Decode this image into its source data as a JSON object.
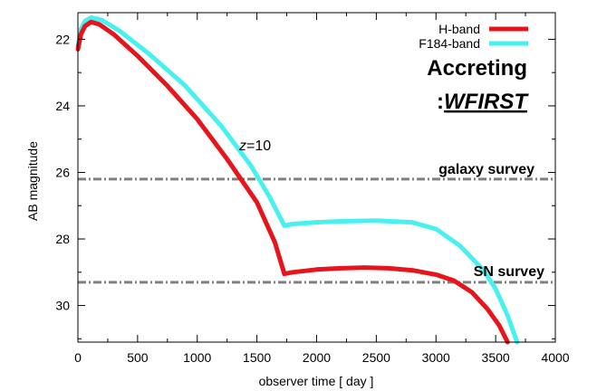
{
  "chart_data": {
    "type": "line",
    "xlabel": "observer time [ day ]",
    "ylabel": "AB magnitude",
    "xlim": [
      0,
      4000
    ],
    "ylim": [
      31.1,
      21.2
    ],
    "y_inverted": true,
    "grid": false,
    "legend_position": "top-right",
    "xticks": [
      "0",
      "500",
      "1000",
      "1500",
      "2000",
      "2500",
      "3000",
      "3500",
      "4000"
    ],
    "yticks": [
      "22",
      "24",
      "26",
      "28",
      "30"
    ],
    "annotations": {
      "accreting": "Accreting",
      "wfirst_prefix": ":",
      "wfirst": "WFIRST",
      "z_var": "z",
      "z_value": "=10"
    },
    "hlines": [
      {
        "name": "galaxy survey",
        "y": 26.2,
        "color": "#808080"
      },
      {
        "name": "SN survey",
        "y": 29.3,
        "color": "#808080"
      }
    ],
    "series": [
      {
        "name": "H-band",
        "color": "#e8141c",
        "points": [
          [
            0,
            22.3
          ],
          [
            25,
            21.85
          ],
          [
            60,
            21.6
          ],
          [
            110,
            21.48
          ],
          [
            180,
            21.55
          ],
          [
            300,
            21.85
          ],
          [
            500,
            22.5
          ],
          [
            750,
            23.4
          ],
          [
            1000,
            24.4
          ],
          [
            1250,
            25.6
          ],
          [
            1500,
            26.9
          ],
          [
            1650,
            28.1
          ],
          [
            1730,
            29.05
          ],
          [
            1800,
            29.0
          ],
          [
            2000,
            28.92
          ],
          [
            2200,
            28.88
          ],
          [
            2400,
            28.86
          ],
          [
            2600,
            28.88
          ],
          [
            2800,
            28.94
          ],
          [
            3000,
            29.07
          ],
          [
            3150,
            29.25
          ],
          [
            3300,
            29.6
          ],
          [
            3430,
            30.1
          ],
          [
            3530,
            30.6
          ],
          [
            3600,
            31.1
          ]
        ]
      },
      {
        "name": "F184-band",
        "color": "#48f0f0",
        "points": [
          [
            0,
            22.2
          ],
          [
            25,
            21.7
          ],
          [
            60,
            21.45
          ],
          [
            110,
            21.35
          ],
          [
            200,
            21.42
          ],
          [
            350,
            21.75
          ],
          [
            600,
            22.45
          ],
          [
            900,
            23.4
          ],
          [
            1200,
            24.6
          ],
          [
            1450,
            25.8
          ],
          [
            1600,
            26.7
          ],
          [
            1730,
            27.6
          ],
          [
            1800,
            27.55
          ],
          [
            2000,
            27.5
          ],
          [
            2200,
            27.47
          ],
          [
            2500,
            27.45
          ],
          [
            2800,
            27.5
          ],
          [
            3000,
            27.7
          ],
          [
            3200,
            28.2
          ],
          [
            3400,
            28.95
          ],
          [
            3500,
            29.5
          ],
          [
            3600,
            30.3
          ],
          [
            3680,
            31.1
          ]
        ]
      }
    ]
  }
}
